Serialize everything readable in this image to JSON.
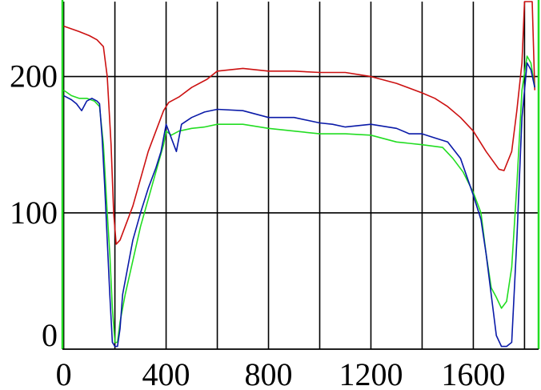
{
  "chart_data": {
    "type": "line",
    "title": "",
    "xlabel": "",
    "ylabel": "",
    "xlim": [
      -5,
      1855
    ],
    "ylim": [
      0,
      255
    ],
    "grid": true,
    "x_ticks": [
      0,
      400,
      800,
      1200,
      1600
    ],
    "x_tick_labels": [
      "0",
      "400",
      "800",
      "1200",
      "1600"
    ],
    "x_gridlines": [
      0,
      200,
      400,
      600,
      800,
      1000,
      1200,
      1400,
      1600,
      1800
    ],
    "y_ticks": [
      0,
      100,
      200
    ],
    "y_tick_labels": [
      "0",
      "100",
      "200"
    ],
    "colors": {
      "red": "#cc1111",
      "green": "#22dd22",
      "blue": "#0a1aa8",
      "grid": "#000000",
      "border": "#22dd22"
    },
    "series": [
      {
        "color": "red",
        "x": [
          0,
          30,
          60,
          100,
          130,
          155,
          170,
          185,
          195,
          205,
          220,
          240,
          270,
          300,
          330,
          360,
          390,
          410,
          450,
          500,
          560,
          600,
          700,
          800,
          900,
          1000,
          1100,
          1200,
          1300,
          1400,
          1450,
          1500,
          1550,
          1600,
          1650,
          1700,
          1720,
          1750,
          1770,
          1790,
          1800,
          1810,
          1820,
          1830,
          1840
        ],
        "y": [
          237,
          235,
          233,
          230,
          227,
          222,
          200,
          150,
          100,
          77,
          80,
          90,
          105,
          125,
          145,
          160,
          175,
          181,
          185,
          192,
          198,
          204,
          206,
          204,
          204,
          203,
          203,
          200,
          195,
          188,
          184,
          178,
          170,
          160,
          145,
          132,
          131,
          145,
          175,
          210,
          255,
          255,
          255,
          255,
          190
        ]
      },
      {
        "color": "green",
        "x": [
          0,
          30,
          60,
          90,
          120,
          140,
          155,
          170,
          180,
          190,
          200,
          210,
          220,
          240,
          270,
          300,
          330,
          360,
          390,
          400,
          420,
          450,
          500,
          550,
          600,
          700,
          800,
          900,
          1000,
          1100,
          1200,
          1300,
          1400,
          1480,
          1520,
          1560,
          1600,
          1630,
          1650,
          1670,
          1690,
          1710,
          1730,
          1750,
          1770,
          1790,
          1810,
          1825,
          1840
        ],
        "y": [
          190,
          186,
          184,
          184,
          182,
          178,
          150,
          100,
          70,
          30,
          5,
          5,
          20,
          40,
          65,
          90,
          110,
          130,
          150,
          160,
          157,
          160,
          162,
          163,
          165,
          165,
          162,
          160,
          158,
          158,
          157,
          152,
          150,
          148,
          140,
          130,
          115,
          100,
          70,
          45,
          38,
          30,
          35,
          60,
          120,
          190,
          215,
          210,
          192
        ]
      },
      {
        "color": "blue",
        "x": [
          0,
          30,
          50,
          70,
          90,
          110,
          130,
          140,
          150,
          160,
          170,
          180,
          190,
          200,
          210,
          220,
          230,
          250,
          270,
          300,
          330,
          360,
          380,
          400,
          420,
          440,
          460,
          500,
          550,
          600,
          700,
          800,
          900,
          1000,
          1050,
          1100,
          1200,
          1300,
          1350,
          1400,
          1450,
          1500,
          1550,
          1600,
          1630,
          1650,
          1670,
          1690,
          1710,
          1730,
          1750,
          1770,
          1790,
          1810,
          1825,
          1840
        ],
        "y": [
          186,
          183,
          180,
          175,
          182,
          184,
          182,
          180,
          155,
          120,
          80,
          40,
          5,
          2,
          2,
          15,
          40,
          60,
          80,
          100,
          118,
          133,
          145,
          165,
          155,
          145,
          165,
          170,
          174,
          176,
          175,
          170,
          170,
          166,
          165,
          163,
          165,
          162,
          158,
          158,
          155,
          152,
          140,
          113,
          95,
          70,
          40,
          10,
          2,
          2,
          5,
          80,
          170,
          210,
          205,
          192
        ]
      }
    ]
  }
}
